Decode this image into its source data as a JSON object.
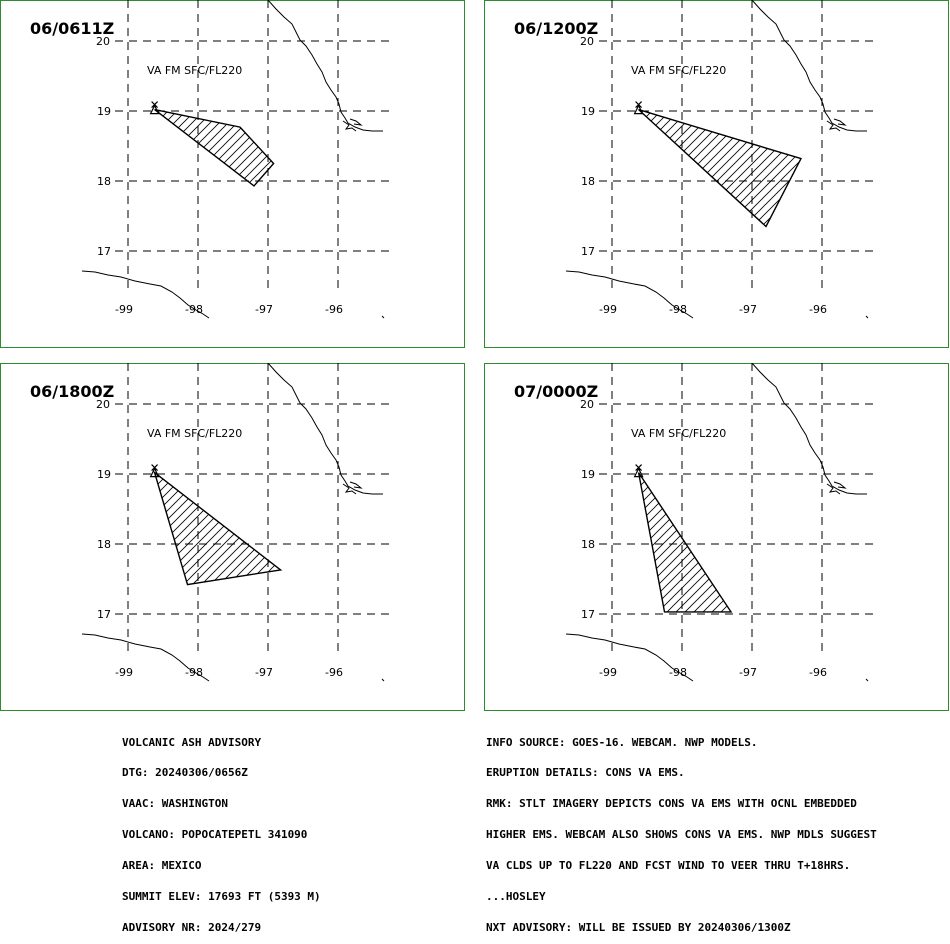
{
  "colors": {
    "frame": "#2e8b2e",
    "grid": "#000000",
    "coast": "#000000",
    "ash": "#000000"
  },
  "panels": [
    {
      "title": "06/0611Z",
      "label": "VA FM SFC/FL220",
      "polygon_lonlat": [
        [
          -98.62,
          19.02
        ],
        [
          -97.4,
          18.77
        ],
        [
          -96.92,
          18.25
        ],
        [
          -97.2,
          17.93
        ]
      ]
    },
    {
      "title": "06/1200Z",
      "label": "VA FM SFC/FL220",
      "polygon_lonlat": [
        [
          -98.62,
          19.02
        ],
        [
          -96.3,
          18.32
        ],
        [
          -96.8,
          17.35
        ]
      ]
    },
    {
      "title": "06/1800Z",
      "label": "VA FM SFC/FL220",
      "polygon_lonlat": [
        [
          -98.62,
          19.02
        ],
        [
          -96.82,
          17.63
        ],
        [
          -98.15,
          17.42
        ]
      ]
    },
    {
      "title": "07/0000Z",
      "label": "VA FM SFC/FL220",
      "polygon_lonlat": [
        [
          -98.62,
          19.02
        ],
        [
          -97.3,
          17.03
        ],
        [
          -98.25,
          17.03
        ]
      ]
    }
  ],
  "grid": {
    "lon_ticks": [
      -99,
      -98,
      -97,
      -96
    ],
    "lon_labels": [
      "-99",
      "-98",
      "-97",
      "-96"
    ],
    "lat_ticks": [
      20,
      19,
      18,
      17
    ],
    "lat_labels": [
      "20",
      "19",
      "18",
      "17"
    ]
  },
  "volcano": {
    "name": "POPOCATEPETL",
    "lon": -98.62,
    "lat": 19.02
  },
  "advisory_left": [
    "VOLCANIC ASH ADVISORY",
    "DTG: 20240306/0656Z",
    "VAAC: WASHINGTON",
    "VOLCANO: POPOCATEPETL 341090",
    "AREA: MEXICO",
    "SUMMIT ELEV: 17693 FT (5393 M)",
    "ADVISORY NR: 2024/279"
  ],
  "advisory_right": [
    "INFO SOURCE: GOES-16. WEBCAM. NWP MODELS.",
    "ERUPTION DETAILS: CONS VA EMS.",
    "RMK: STLT IMAGERY DEPICTS CONS VA EMS WITH OCNL EMBEDDED",
    "HIGHER EMS. WEBCAM ALSO SHOWS CONS VA EMS. NWP MDLS SUGGEST",
    "VA CLDS UP TO FL220 AND FCST WIND TO VEER THRU T+18HRS.",
    "...HOSLEY",
    "NXT ADVISORY: WILL BE ISSUED BY 20240306/1300Z"
  ]
}
